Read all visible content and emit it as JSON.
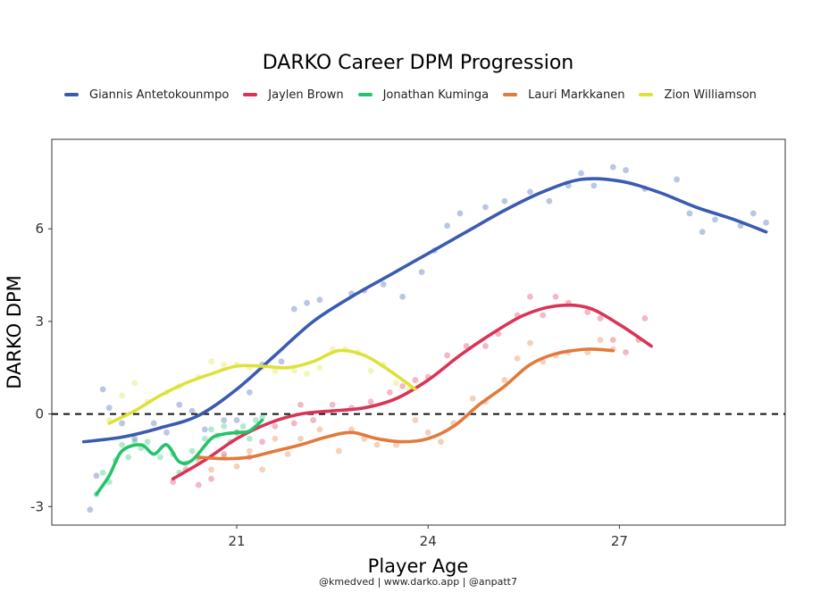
{
  "chart_data": {
    "type": "scatter",
    "title": "DARKO Career DPM Progression",
    "xlabel": "Player Age",
    "ylabel": "DARKO DPM",
    "caption": "@kmedved | www.darko.app | @anpatt7",
    "xlim": [
      18.1,
      29.6
    ],
    "ylim": [
      -3.6,
      8.9
    ],
    "xticks": [
      21,
      24,
      27
    ],
    "yticks": [
      -3,
      0,
      3,
      6
    ],
    "reference_line": {
      "y": 0,
      "style": "dashed"
    },
    "legend_position": "top",
    "grid": false,
    "series": [
      {
        "name": "Giannis Antetokounmpo",
        "color": "#3a5bb0",
        "smooth": [
          [
            18.6,
            -0.9
          ],
          [
            19.2,
            -0.75
          ],
          [
            19.8,
            -0.45
          ],
          [
            20.4,
            -0.05
          ],
          [
            21,
            0.8
          ],
          [
            21.6,
            1.9
          ],
          [
            22.2,
            3.0
          ],
          [
            22.8,
            3.8
          ],
          [
            23.4,
            4.5
          ],
          [
            24,
            5.2
          ],
          [
            24.6,
            5.9
          ],
          [
            25.2,
            6.6
          ],
          [
            25.8,
            7.2
          ],
          [
            26.4,
            7.6
          ],
          [
            27,
            7.55
          ],
          [
            27.6,
            7.2
          ],
          [
            28.2,
            6.7
          ],
          [
            28.8,
            6.3
          ],
          [
            29.3,
            5.9
          ]
        ],
        "points": [
          [
            18.7,
            -3.1
          ],
          [
            18.8,
            -2.0
          ],
          [
            18.9,
            0.8
          ],
          [
            19.0,
            0.2
          ],
          [
            19.2,
            -0.3
          ],
          [
            19.4,
            -0.8
          ],
          [
            19.7,
            -0.3
          ],
          [
            19.9,
            -0.6
          ],
          [
            20.1,
            0.3
          ],
          [
            20.3,
            0.1
          ],
          [
            20.5,
            -0.5
          ],
          [
            20.8,
            -0.2
          ],
          [
            21.0,
            -0.2
          ],
          [
            21.2,
            0.7
          ],
          [
            21.4,
            1.6
          ],
          [
            21.7,
            1.7
          ],
          [
            21.9,
            3.4
          ],
          [
            22.1,
            3.6
          ],
          [
            22.3,
            3.7
          ],
          [
            22.8,
            3.9
          ],
          [
            23.0,
            4.0
          ],
          [
            23.3,
            4.2
          ],
          [
            23.6,
            3.8
          ],
          [
            23.9,
            4.6
          ],
          [
            24.1,
            5.3
          ],
          [
            24.3,
            6.1
          ],
          [
            24.5,
            6.5
          ],
          [
            24.9,
            6.7
          ],
          [
            25.2,
            6.9
          ],
          [
            25.6,
            7.2
          ],
          [
            25.9,
            6.9
          ],
          [
            26.2,
            7.4
          ],
          [
            26.4,
            7.8
          ],
          [
            26.6,
            7.4
          ],
          [
            26.9,
            8.0
          ],
          [
            27.1,
            7.9
          ],
          [
            27.4,
            7.3
          ],
          [
            27.9,
            7.6
          ],
          [
            28.1,
            6.5
          ],
          [
            28.3,
            5.9
          ],
          [
            28.5,
            6.3
          ],
          [
            28.9,
            6.1
          ],
          [
            29.1,
            6.5
          ],
          [
            29.3,
            6.2
          ]
        ]
      },
      {
        "name": "Jaylen Brown",
        "color": "#d93456",
        "smooth": [
          [
            20.0,
            -2.1
          ],
          [
            20.5,
            -1.5
          ],
          [
            21.0,
            -0.8
          ],
          [
            21.5,
            -0.3
          ],
          [
            22.0,
            0.0
          ],
          [
            22.5,
            0.1
          ],
          [
            23.0,
            0.2
          ],
          [
            23.5,
            0.5
          ],
          [
            24.0,
            1.1
          ],
          [
            24.5,
            1.9
          ],
          [
            25.0,
            2.6
          ],
          [
            25.5,
            3.2
          ],
          [
            26.0,
            3.5
          ],
          [
            26.5,
            3.45
          ],
          [
            27.0,
            2.9
          ],
          [
            27.5,
            2.2
          ]
        ],
        "points": [
          [
            20.0,
            -2.2
          ],
          [
            20.2,
            -1.8
          ],
          [
            20.4,
            -2.3
          ],
          [
            20.6,
            -2.1
          ],
          [
            20.8,
            -1.3
          ],
          [
            21.0,
            -0.6
          ],
          [
            21.2,
            -1.4
          ],
          [
            21.4,
            -0.9
          ],
          [
            21.6,
            -0.4
          ],
          [
            21.9,
            -0.3
          ],
          [
            22.0,
            0.3
          ],
          [
            22.2,
            -0.2
          ],
          [
            22.5,
            0.3
          ],
          [
            22.8,
            0.2
          ],
          [
            23.1,
            0.4
          ],
          [
            23.4,
            0.7
          ],
          [
            23.6,
            0.9
          ],
          [
            23.8,
            1.1
          ],
          [
            24.0,
            1.2
          ],
          [
            24.3,
            1.9
          ],
          [
            24.6,
            2.2
          ],
          [
            24.9,
            2.2
          ],
          [
            25.1,
            2.6
          ],
          [
            25.4,
            3.2
          ],
          [
            25.6,
            3.8
          ],
          [
            25.8,
            3.2
          ],
          [
            26.0,
            3.8
          ],
          [
            26.2,
            3.6
          ],
          [
            26.5,
            3.3
          ],
          [
            26.7,
            3.1
          ],
          [
            26.9,
            2.4
          ],
          [
            27.1,
            2.0
          ],
          [
            27.3,
            2.4
          ],
          [
            27.4,
            3.1
          ]
        ]
      },
      {
        "name": "Jonathan Kuminga",
        "color": "#22c46a",
        "smooth": [
          [
            18.8,
            -2.6
          ],
          [
            19.0,
            -2.0
          ],
          [
            19.2,
            -1.2
          ],
          [
            19.5,
            -1.0
          ],
          [
            19.7,
            -1.3
          ],
          [
            19.9,
            -1.0
          ],
          [
            20.1,
            -1.55
          ],
          [
            20.3,
            -1.5
          ],
          [
            20.6,
            -0.8
          ],
          [
            20.8,
            -0.65
          ],
          [
            21.0,
            -0.6
          ],
          [
            21.2,
            -0.55
          ],
          [
            21.4,
            -0.2
          ]
        ],
        "points": [
          [
            18.8,
            -2.6
          ],
          [
            18.9,
            -1.9
          ],
          [
            19.0,
            -2.2
          ],
          [
            19.1,
            -1.5
          ],
          [
            19.2,
            -1.0
          ],
          [
            19.3,
            -1.4
          ],
          [
            19.4,
            -0.9
          ],
          [
            19.5,
            -1.1
          ],
          [
            19.6,
            -0.9
          ],
          [
            19.8,
            -1.4
          ],
          [
            20.0,
            -1.3
          ],
          [
            20.1,
            -1.9
          ],
          [
            20.2,
            -1.6
          ],
          [
            20.3,
            -1.2
          ],
          [
            20.4,
            -1.4
          ],
          [
            20.5,
            -0.8
          ],
          [
            20.6,
            -0.5
          ],
          [
            20.7,
            -0.7
          ],
          [
            20.8,
            -0.4
          ],
          [
            20.9,
            -0.9
          ],
          [
            21.0,
            -0.6
          ],
          [
            21.1,
            -0.4
          ],
          [
            21.2,
            -0.8
          ],
          [
            21.3,
            -0.2
          ],
          [
            21.4,
            -0.1
          ]
        ]
      },
      {
        "name": "Lauri Markkanen",
        "color": "#e3793a",
        "smooth": [
          [
            20.4,
            -1.4
          ],
          [
            20.8,
            -1.45
          ],
          [
            21.2,
            -1.4
          ],
          [
            21.6,
            -1.2
          ],
          [
            22.0,
            -1.0
          ],
          [
            22.4,
            -0.75
          ],
          [
            22.8,
            -0.6
          ],
          [
            23.2,
            -0.8
          ],
          [
            23.6,
            -0.9
          ],
          [
            24.0,
            -0.8
          ],
          [
            24.4,
            -0.4
          ],
          [
            24.8,
            0.3
          ],
          [
            25.2,
            0.9
          ],
          [
            25.6,
            1.6
          ],
          [
            26.0,
            1.95
          ],
          [
            26.5,
            2.1
          ],
          [
            26.9,
            2.05
          ]
        ],
        "points": [
          [
            20.4,
            -1.5
          ],
          [
            20.6,
            -1.8
          ],
          [
            20.8,
            -1.4
          ],
          [
            21.0,
            -1.7
          ],
          [
            21.2,
            -1.2
          ],
          [
            21.4,
            -1.8
          ],
          [
            21.6,
            -0.8
          ],
          [
            21.8,
            -1.3
          ],
          [
            22.0,
            -0.8
          ],
          [
            22.3,
            -0.5
          ],
          [
            22.6,
            -1.2
          ],
          [
            22.8,
            -0.5
          ],
          [
            23.0,
            -0.8
          ],
          [
            23.2,
            -1.0
          ],
          [
            23.5,
            -1.0
          ],
          [
            23.8,
            -0.2
          ],
          [
            24.0,
            -0.6
          ],
          [
            24.2,
            -0.9
          ],
          [
            24.4,
            -0.3
          ],
          [
            24.7,
            0.5
          ],
          [
            24.9,
            0.4
          ],
          [
            25.2,
            1.1
          ],
          [
            25.4,
            1.8
          ],
          [
            25.6,
            2.3
          ],
          [
            25.8,
            1.7
          ],
          [
            26.0,
            1.9
          ],
          [
            26.2,
            2.0
          ],
          [
            26.5,
            2.0
          ],
          [
            26.7,
            2.4
          ],
          [
            26.9,
            2.1
          ]
        ]
      },
      {
        "name": "Zion Williamson",
        "color": "#dde23a",
        "smooth": [
          [
            19.0,
            -0.3
          ],
          [
            19.4,
            0.1
          ],
          [
            19.8,
            0.6
          ],
          [
            20.2,
            1.0
          ],
          [
            20.6,
            1.3
          ],
          [
            21.0,
            1.55
          ],
          [
            21.4,
            1.55
          ],
          [
            21.8,
            1.5
          ],
          [
            22.2,
            1.7
          ],
          [
            22.6,
            2.05
          ],
          [
            23.0,
            1.9
          ],
          [
            23.4,
            1.4
          ],
          [
            23.8,
            0.8
          ]
        ],
        "points": [
          [
            19.0,
            -0.2
          ],
          [
            19.2,
            0.6
          ],
          [
            19.4,
            1.0
          ],
          [
            19.6,
            0.4
          ],
          [
            19.9,
            0.7
          ],
          [
            20.1,
            0.9
          ],
          [
            20.4,
            1.2
          ],
          [
            20.6,
            1.7
          ],
          [
            20.8,
            1.6
          ],
          [
            21.0,
            1.6
          ],
          [
            21.2,
            1.5
          ],
          [
            21.4,
            1.5
          ],
          [
            21.6,
            1.4
          ],
          [
            21.9,
            1.4
          ],
          [
            22.1,
            1.3
          ],
          [
            22.3,
            1.5
          ],
          [
            22.5,
            2.1
          ],
          [
            22.7,
            2.1
          ],
          [
            22.9,
            2.0
          ],
          [
            23.1,
            1.4
          ],
          [
            23.3,
            1.6
          ],
          [
            23.5,
            1.0
          ],
          [
            23.7,
            0.8
          ]
        ]
      }
    ]
  }
}
